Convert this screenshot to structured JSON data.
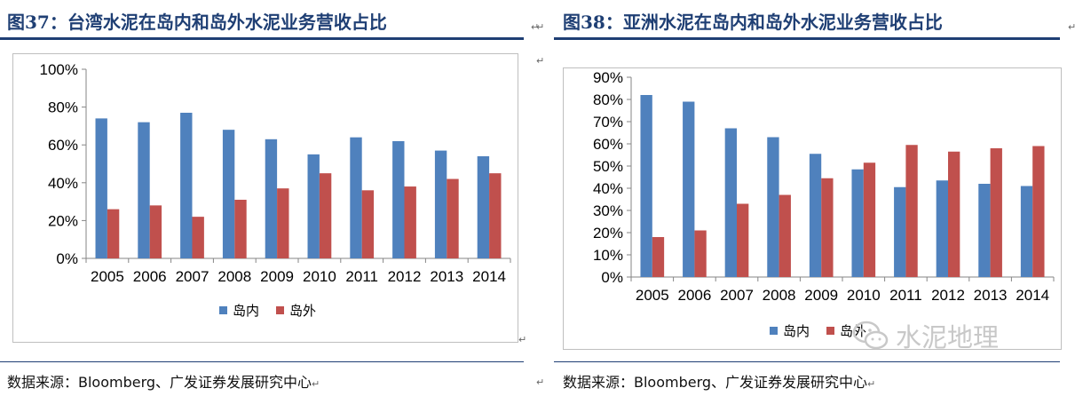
{
  "figures": [
    {
      "title": "图37：台湾水泥在岛内和岛外水泥业务营收占比",
      "source": "数据来源：Bloomberg、广发证券发展研究中心"
    },
    {
      "title": "图38：亚洲水泥在岛内和岛外水泥业务营收占比",
      "source": "数据来源：Bloomberg、广发证券发展研究中心"
    }
  ],
  "watermark": {
    "text": "水泥地理",
    "icon": "wechat-icon"
  },
  "paragraph_mark": "↵",
  "colors": {
    "domestic": "#4f81bd",
    "overseas": "#c0504d",
    "title": "#1f3f74"
  },
  "chart_data": [
    {
      "type": "bar",
      "categories": [
        "2005",
        "2006",
        "2007",
        "2008",
        "2009",
        "2010",
        "2011",
        "2012",
        "2013",
        "2014"
      ],
      "series": [
        {
          "name": "岛内",
          "values": [
            74,
            72,
            77,
            68,
            63,
            55,
            64,
            62,
            57,
            54
          ]
        },
        {
          "name": "岛外",
          "values": [
            26,
            28,
            22,
            31,
            37,
            45,
            36,
            38,
            42,
            45
          ]
        }
      ],
      "ylim": [
        0,
        100
      ],
      "yticks": [
        0,
        20,
        40,
        60,
        80,
        100
      ],
      "ytick_format": "percent",
      "grid": false,
      "legend": "bottom"
    },
    {
      "type": "bar",
      "categories": [
        "2005",
        "2006",
        "2007",
        "2008",
        "2009",
        "2010",
        "2011",
        "2012",
        "2013",
        "2014"
      ],
      "series": [
        {
          "name": "岛内",
          "values": [
            82,
            79,
            67,
            63,
            55.5,
            48.5,
            40.5,
            43.5,
            42,
            41
          ]
        },
        {
          "name": "岛外",
          "values": [
            18,
            21,
            33,
            37,
            44.5,
            51.5,
            59.5,
            56.5,
            58,
            59
          ]
        }
      ],
      "ylim": [
        0,
        90
      ],
      "yticks": [
        0,
        10,
        20,
        30,
        40,
        50,
        60,
        70,
        80,
        90
      ],
      "ytick_format": "percent",
      "grid": false,
      "legend": "bottom"
    }
  ]
}
